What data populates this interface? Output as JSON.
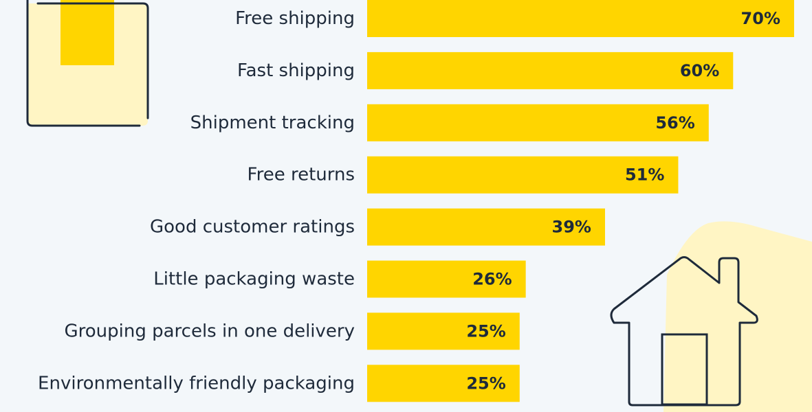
{
  "chart_data": {
    "type": "bar",
    "orientation": "horizontal",
    "title": "",
    "xlabel": "",
    "ylabel": "",
    "categories": [
      "Free shipping",
      "Fast shipping",
      "Shipment tracking",
      "Free returns",
      "Good customer ratings",
      "Little packaging waste",
      "Grouping parcels in one delivery",
      "Environmentally friendly packaging"
    ],
    "values": [
      70,
      60,
      56,
      51,
      39,
      26,
      25,
      25
    ],
    "value_labels": [
      "70%",
      "60%",
      "56%",
      "51%",
      "39%",
      "26%",
      "25%",
      "25%"
    ],
    "xlim": [
      0,
      70
    ],
    "grid": false,
    "bar_color": "#ffd500"
  },
  "colors": {
    "background": "#f3f7fa",
    "bar": "#ffd500",
    "text": "#1e2a3a",
    "icon_fill": "#fff5c4",
    "icon_stroke": "#1e2a3a"
  },
  "icons": [
    "package-box-icon",
    "house-icon"
  ]
}
